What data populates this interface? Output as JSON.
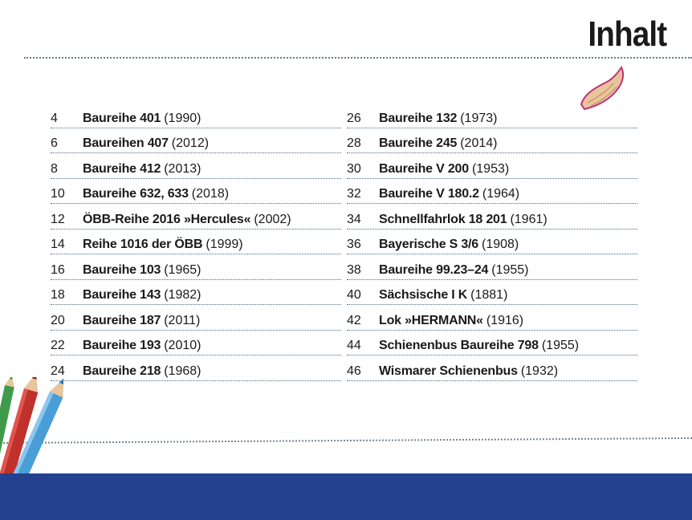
{
  "title": "Inhalt",
  "left_column": [
    {
      "page": "4",
      "name": "Baureihe 401",
      "year": "(1990)"
    },
    {
      "page": "6",
      "name": "Baureihen 407",
      "year": "(2012)"
    },
    {
      "page": "8",
      "name": "Baureihe 412",
      "year": "(2013)"
    },
    {
      "page": "10",
      "name": "Baureihe 632, 633",
      "year": "(2018)"
    },
    {
      "page": "12",
      "name": "ÖBB-Reihe 2016 »Hercules«",
      "year": "(2002)"
    },
    {
      "page": "14",
      "name": "Reihe 1016 der ÖBB",
      "year": "(1999)"
    },
    {
      "page": "16",
      "name": "Baureihe 103",
      "year": "(1965)"
    },
    {
      "page": "18",
      "name": "Baureihe 143",
      "year": "(1982)"
    },
    {
      "page": "20",
      "name": "Baureihe 187",
      "year": "(2011)"
    },
    {
      "page": "22",
      "name": "Baureihe 193",
      "year": "(2010)"
    },
    {
      "page": "24",
      "name": "Baureihe 218",
      "year": "(1968)"
    }
  ],
  "right_column": [
    {
      "page": "26",
      "name": "Baureihe 132",
      "year": "(1973)"
    },
    {
      "page": "28",
      "name": "Baureihe 245",
      "year": "(2014)"
    },
    {
      "page": "30",
      "name": "Baureihe V 200",
      "year": "(1953)"
    },
    {
      "page": "32",
      "name": "Baureihe V 180.2",
      "year": "(1964)"
    },
    {
      "page": "34",
      "name": "Schnellfahrlok 18 201",
      "year": "(1961)"
    },
    {
      "page": "36",
      "name": "Bayerische S 3/6",
      "year": "(1908)"
    },
    {
      "page": "38",
      "name": "Baureihe 99.23–24",
      "year": "(1955)"
    },
    {
      "page": "40",
      "name": "Sächsische I K",
      "year": "(1881)"
    },
    {
      "page": "42",
      "name": "Lok »HERMANN«",
      "year": "(1916)"
    },
    {
      "page": "44",
      "name": "Schienenbus Baureihe 798",
      "year": "(1955)"
    },
    {
      "page": "46",
      "name": "Wismarer Schienenbus",
      "year": "(1932)"
    }
  ],
  "colors": {
    "band": "#24418f",
    "dotted_rule": "#4a6b86",
    "pencil_red": "#c0312b",
    "pencil_blue": "#4a9ed8",
    "pencil_green": "#3f9a4a",
    "shaving_edge": "#c0307a"
  },
  "decor": {
    "pencils": "colored-pencils-icon",
    "shaving": "pencil-shaving-icon"
  }
}
